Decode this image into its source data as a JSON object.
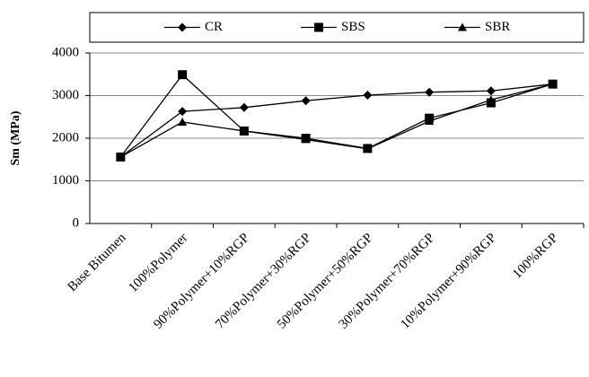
{
  "chart_data": {
    "type": "line",
    "y_label": "Sm (MPa)",
    "categories": [
      "Base Bitumen",
      "100%Polymer",
      "90%Polymer+10%RGP",
      "70%Polymer+30%RGP",
      "50%Polymer+50%RGP",
      "30%Polymer+70%RGP",
      "10%Polymer+90%RGP",
      "100%RGP"
    ],
    "series": [
      {
        "name": "CR",
        "color": "#000000",
        "marker": "diamond",
        "values": [
          1560,
          2630,
          2720,
          2880,
          3010,
          3080,
          3110,
          3270
        ]
      },
      {
        "name": "SBS",
        "color": "#000000",
        "marker": "square",
        "values": [
          1560,
          3490,
          2170,
          2000,
          1760,
          2470,
          2830,
          3270
        ]
      },
      {
        "name": "SBR",
        "color": "#000000",
        "marker": "triangle",
        "values": [
          1560,
          2380,
          2170,
          1970,
          1750,
          2400,
          2900,
          3270
        ]
      }
    ],
    "ylim": [
      0,
      4000
    ],
    "yticks": [
      0,
      1000,
      2000,
      3000,
      4000
    ],
    "grid": true,
    "legend": "top"
  }
}
